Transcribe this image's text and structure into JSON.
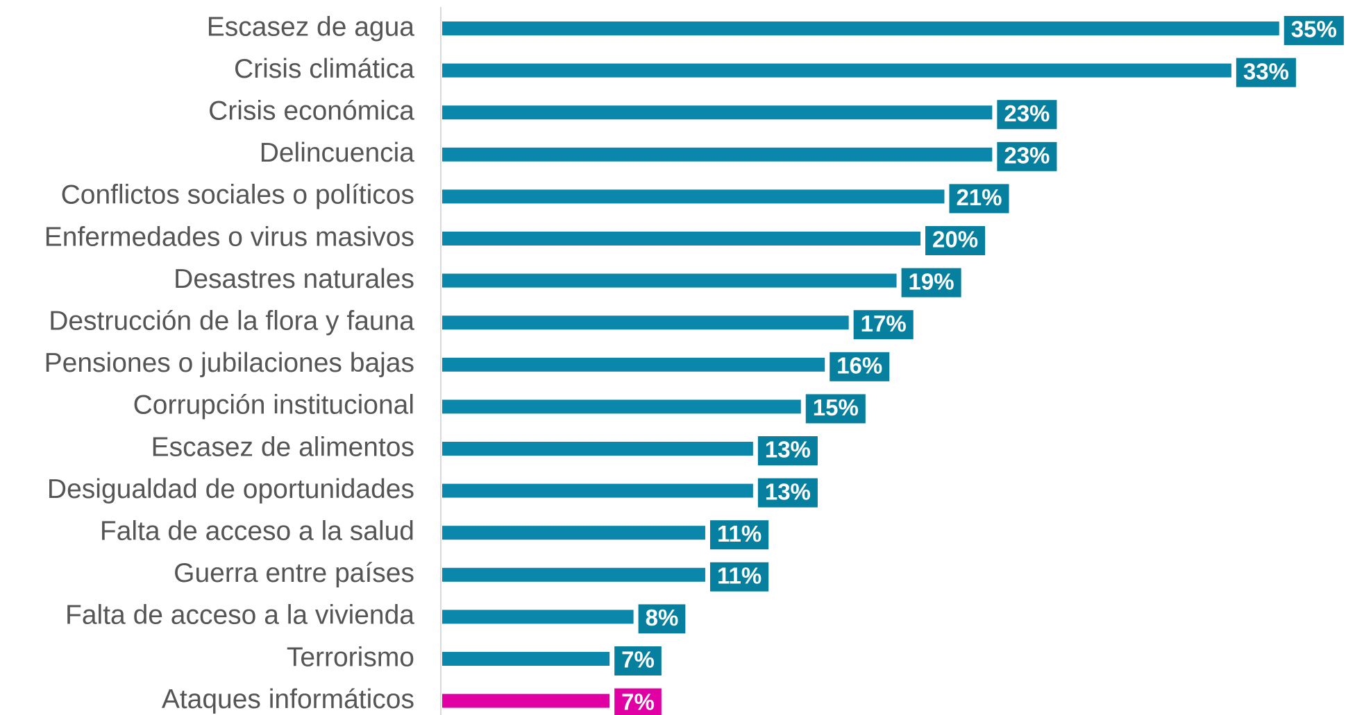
{
  "chart_data": {
    "type": "barh",
    "categories": [
      "Escasez de agua",
      "Crisis climática",
      "Crisis económica",
      "Delincuencia",
      "Conflictos sociales o políticos",
      "Enfermedades o virus masivos",
      "Desastres naturales",
      "Destrucción de la flora y fauna",
      "Pensiones o jubilaciones bajas",
      "Corrupción institucional",
      "Escasez de alimentos",
      "Desigualdad de oportunidades",
      "Falta de acceso a la salud",
      "Guerra entre países",
      "Falta de acceso a la vivienda",
      "Terrorismo",
      "Ataques informáticos"
    ],
    "values": [
      35,
      33,
      23,
      23,
      21,
      20,
      19,
      17,
      16,
      15,
      13,
      13,
      11,
      11,
      8,
      7,
      7
    ],
    "value_labels": [
      "35%",
      "33%",
      "23%",
      "23%",
      "21%",
      "20%",
      "19%",
      "17%",
      "16%",
      "15%",
      "13%",
      "13%",
      "11%",
      "11%",
      "8%",
      "7%",
      "7%"
    ],
    "colors": [
      "#0a87aa",
      "#0a87aa",
      "#0a87aa",
      "#0a87aa",
      "#0a87aa",
      "#0a87aa",
      "#0a87aa",
      "#0a87aa",
      "#0a87aa",
      "#0a87aa",
      "#0a87aa",
      "#0a87aa",
      "#0a87aa",
      "#0a87aa",
      "#0a87aa",
      "#0a87aa",
      "#e000a4"
    ],
    "label_colors": [
      "#07809f",
      "#07809f",
      "#07809f",
      "#07809f",
      "#07809f",
      "#07809f",
      "#07809f",
      "#07809f",
      "#07809f",
      "#07809f",
      "#07809f",
      "#07809f",
      "#07809f",
      "#07809f",
      "#07809f",
      "#07809f",
      "#e000a4"
    ]
  }
}
